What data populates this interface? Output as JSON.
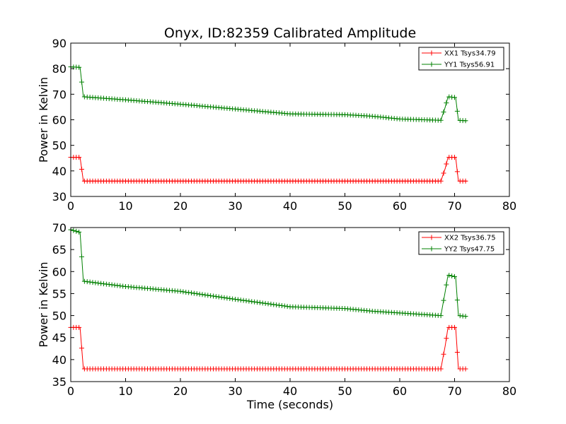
{
  "figure": {
    "title": "Onyx, ID:82359 Calibrated Amplitude",
    "xlabel": "Time (seconds)"
  },
  "chart_data": [
    {
      "type": "line",
      "title": "Onyx, ID:82359 Calibrated Amplitude",
      "xlabel": "",
      "ylabel": "Power in Kelvin",
      "xlim": [
        0,
        80
      ],
      "ylim": [
        30,
        90
      ],
      "xticks": [
        0,
        10,
        20,
        30,
        40,
        50,
        60,
        70,
        80
      ],
      "yticks": [
        30,
        40,
        50,
        60,
        70,
        80,
        90
      ],
      "grid": false,
      "legend": "top-right",
      "marker": "+",
      "series": [
        {
          "name": "XX1 Tsys34.79",
          "color": "#ff0000",
          "points": [
            [
              0,
              45.3
            ],
            [
              1.7,
              45.3
            ],
            [
              2.3,
              36
            ],
            [
              67.5,
              36
            ],
            [
              68.3,
              41
            ],
            [
              68.8,
              45.3
            ],
            [
              70.2,
              45.3
            ],
            [
              70.7,
              36
            ],
            [
              72.3,
              36
            ]
          ]
        },
        {
          "name": "YY1 Tsys56.91",
          "color": "#008000",
          "points": [
            [
              0,
              80.7
            ],
            [
              1.7,
              80.5
            ],
            [
              2.3,
              69
            ],
            [
              10,
              67.8
            ],
            [
              20,
              66.1
            ],
            [
              30,
              64.2
            ],
            [
              40,
              62.3
            ],
            [
              50,
              62.0
            ],
            [
              55,
              61.4
            ],
            [
              60,
              60.3
            ],
            [
              67.5,
              59.8
            ],
            [
              68.3,
              65
            ],
            [
              68.8,
              69
            ],
            [
              70.2,
              68.7
            ],
            [
              70.7,
              59.8
            ],
            [
              72.3,
              59.6
            ]
          ]
        }
      ]
    },
    {
      "type": "line",
      "xlabel": "Time (seconds)",
      "ylabel": "Power in Kelvin",
      "xlim": [
        0,
        80
      ],
      "ylim": [
        35,
        70
      ],
      "xticks": [
        0,
        10,
        20,
        30,
        40,
        50,
        60,
        70,
        80
      ],
      "yticks": [
        35,
        40,
        45,
        50,
        55,
        60,
        65,
        70
      ],
      "grid": false,
      "legend": "top-right",
      "marker": "+",
      "series": [
        {
          "name": "XX2 Tsys36.75",
          "color": "#ff0000",
          "points": [
            [
              0,
              47.3
            ],
            [
              1.7,
              47.3
            ],
            [
              2.3,
              37.9
            ],
            [
              67.5,
              37.9
            ],
            [
              68.3,
              43.2
            ],
            [
              68.8,
              47.3
            ],
            [
              70.2,
              47.3
            ],
            [
              70.7,
              37.9
            ],
            [
              72.3,
              37.9
            ]
          ]
        },
        {
          "name": "YY2 Tsys47.75",
          "color": "#008000",
          "points": [
            [
              0,
              69.5
            ],
            [
              1.7,
              68.9
            ],
            [
              2.3,
              57.8
            ],
            [
              10,
              56.6
            ],
            [
              20,
              55.5
            ],
            [
              30,
              53.7
            ],
            [
              40,
              52.0
            ],
            [
              50,
              51.6
            ],
            [
              55,
              51.0
            ],
            [
              60,
              50.6
            ],
            [
              67.5,
              50.0
            ],
            [
              68.3,
              55.5
            ],
            [
              68.8,
              59.2
            ],
            [
              70.2,
              58.8
            ],
            [
              70.7,
              50.0
            ],
            [
              72.3,
              49.8
            ]
          ]
        }
      ]
    }
  ]
}
